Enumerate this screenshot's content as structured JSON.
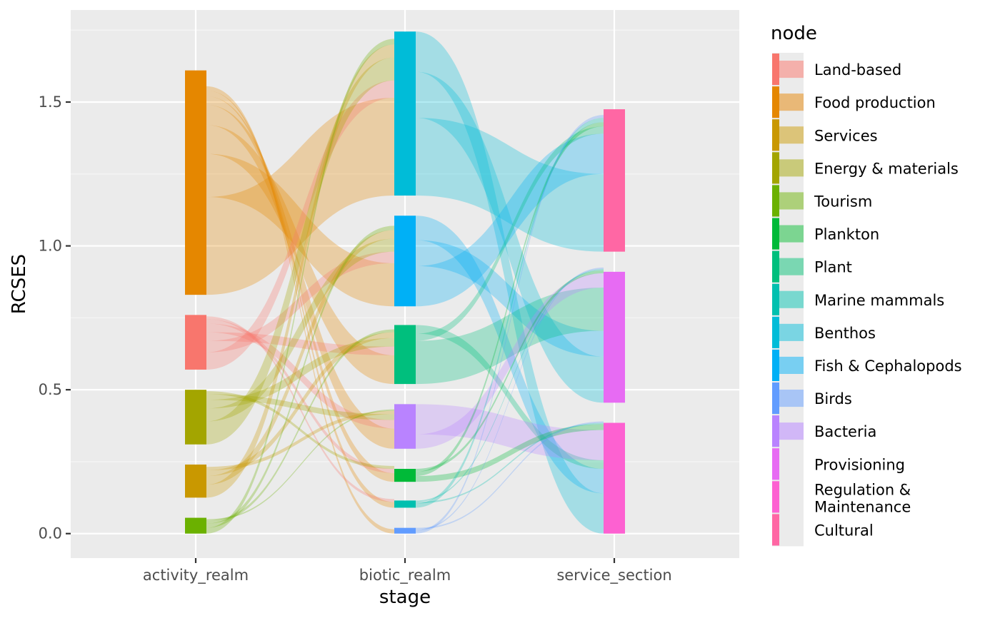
{
  "chart_data": {
    "type": "alluvial",
    "title": "",
    "xlabel": "stage",
    "ylabel": "RCSES",
    "ylim": [
      -0.085,
      1.82
    ],
    "yticks": [
      "0.0",
      "0.5",
      "1.0",
      "1.5"
    ],
    "grid": true,
    "legend_position": "right",
    "legend_title": "node",
    "stages": [
      "activity_realm",
      "biotic_realm",
      "service_section"
    ],
    "nodes": [
      {
        "stage": "activity_realm",
        "name": "Land-based",
        "ymin": 0.57,
        "ymax": 0.76,
        "color": "#F8766D"
      },
      {
        "stage": "activity_realm",
        "name": "Food production",
        "ymin": 0.83,
        "ymax": 1.61,
        "color": "#E58700"
      },
      {
        "stage": "activity_realm",
        "name": "Services",
        "ymin": 0.125,
        "ymax": 0.24,
        "color": "#C99800"
      },
      {
        "stage": "activity_realm",
        "name": "Energy & materials",
        "ymin": 0.31,
        "ymax": 0.5,
        "color": "#A3A500"
      },
      {
        "stage": "activity_realm",
        "name": "Tourism",
        "ymin": 0.0,
        "ymax": 0.055,
        "color": "#6BB100"
      },
      {
        "stage": "biotic_realm",
        "name": "Plankton",
        "ymin": 0.18,
        "ymax": 0.225,
        "color": "#00BA38"
      },
      {
        "stage": "biotic_realm",
        "name": "Plant",
        "ymin": 0.52,
        "ymax": 0.725,
        "color": "#00BF7D"
      },
      {
        "stage": "biotic_realm",
        "name": "Marine mammals",
        "ymin": 0.09,
        "ymax": 0.115,
        "color": "#00C0AF"
      },
      {
        "stage": "biotic_realm",
        "name": "Benthos",
        "ymin": 1.175,
        "ymax": 1.745,
        "color": "#00BCD8"
      },
      {
        "stage": "biotic_realm",
        "name": "Fish & Cephalopods",
        "ymin": 0.79,
        "ymax": 1.105,
        "color": "#00B0F6"
      },
      {
        "stage": "biotic_realm",
        "name": "Birds",
        "ymin": 0.0,
        "ymax": 0.02,
        "color": "#619CFF"
      },
      {
        "stage": "biotic_realm",
        "name": "Bacteria",
        "ymin": 0.295,
        "ymax": 0.45,
        "color": "#B983FF"
      },
      {
        "stage": "service_section",
        "name": "Provisioning",
        "ymin": 0.455,
        "ymax": 0.91,
        "color": "#E76BF3"
      },
      {
        "stage": "service_section",
        "name": "Regulation & Maintenance",
        "ymin": 0.0,
        "ymax": 0.385,
        "color": "#FD61D1"
      },
      {
        "stage": "service_section",
        "name": "Cultural",
        "ymin": 0.98,
        "ymax": 1.475,
        "color": "#FF67A4"
      }
    ],
    "flows": [
      {
        "from": "Food production",
        "to": "Benthos",
        "value": 0.34
      },
      {
        "from": "Food production",
        "to": "Fish & Cephalopods",
        "value": 0.15
      },
      {
        "from": "Food production",
        "to": "Plant",
        "value": 0.1
      },
      {
        "from": "Food production",
        "to": "Bacteria",
        "value": 0.07
      },
      {
        "from": "Food production",
        "to": "Plankton",
        "value": 0.03
      },
      {
        "from": "Food production",
        "to": "Marine mammals",
        "value": 0.02
      },
      {
        "from": "Food production",
        "to": "Birds",
        "value": 0.015
      },
      {
        "from": "Land-based",
        "to": "Benthos",
        "value": 0.06
      },
      {
        "from": "Land-based",
        "to": "Fish & Cephalopods",
        "value": 0.04
      },
      {
        "from": "Land-based",
        "to": "Plant",
        "value": 0.03
      },
      {
        "from": "Land-based",
        "to": "Bacteria",
        "value": 0.03
      },
      {
        "from": "Land-based",
        "to": "Plankton",
        "value": 0.015
      },
      {
        "from": "Land-based",
        "to": "Marine mammals",
        "value": 0.01
      },
      {
        "from": "Energy & materials",
        "to": "Benthos",
        "value": 0.08
      },
      {
        "from": "Energy & materials",
        "to": "Fish & Cephalopods",
        "value": 0.045
      },
      {
        "from": "Energy & materials",
        "to": "Plant",
        "value": 0.03
      },
      {
        "from": "Energy & materials",
        "to": "Bacteria",
        "value": 0.02
      },
      {
        "from": "Energy & materials",
        "to": "Plankton",
        "value": 0.01
      },
      {
        "from": "Services",
        "to": "Benthos",
        "value": 0.045
      },
      {
        "from": "Services",
        "to": "Fish & Cephalopods",
        "value": 0.03
      },
      {
        "from": "Services",
        "to": "Plant",
        "value": 0.02
      },
      {
        "from": "Services",
        "to": "Bacteria",
        "value": 0.012
      },
      {
        "from": "Tourism",
        "to": "Benthos",
        "value": 0.02
      },
      {
        "from": "Tourism",
        "to": "Fish & Cephalopods",
        "value": 0.015
      },
      {
        "from": "Tourism",
        "to": "Plant",
        "value": 0.01
      },
      {
        "from": "Tourism",
        "to": "Bacteria",
        "value": 0.005
      },
      {
        "from": "Benthos",
        "to": "Cultural",
        "value": 0.27
      },
      {
        "from": "Benthos",
        "to": "Provisioning",
        "value": 0.16
      },
      {
        "from": "Benthos",
        "to": "Regulation & Maintenance",
        "value": 0.14
      },
      {
        "from": "Fish & Cephalopods",
        "to": "Cultural",
        "value": 0.14
      },
      {
        "from": "Fish & Cephalopods",
        "to": "Provisioning",
        "value": 0.09
      },
      {
        "from": "Fish & Cephalopods",
        "to": "Regulation & Maintenance",
        "value": 0.085
      },
      {
        "from": "Plant",
        "to": "Provisioning",
        "value": 0.15
      },
      {
        "from": "Plant",
        "to": "Cultural",
        "value": 0.025
      },
      {
        "from": "Plant",
        "to": "Regulation & Maintenance",
        "value": 0.03
      },
      {
        "from": "Bacteria",
        "to": "Provisioning",
        "value": 0.05
      },
      {
        "from": "Bacteria",
        "to": "Regulation & Maintenance",
        "value": 0.105
      },
      {
        "from": "Plankton",
        "to": "Regulation & Maintenance",
        "value": 0.02
      },
      {
        "from": "Plankton",
        "to": "Cultural",
        "value": 0.015
      },
      {
        "from": "Plankton",
        "to": "Provisioning",
        "value": 0.01
      },
      {
        "from": "Marine mammals",
        "to": "Cultural",
        "value": 0.015
      },
      {
        "from": "Marine mammals",
        "to": "Regulation & Maintenance",
        "value": 0.005
      },
      {
        "from": "Marine mammals",
        "to": "Provisioning",
        "value": 0.005
      },
      {
        "from": "Birds",
        "to": "Cultural",
        "value": 0.01
      },
      {
        "from": "Birds",
        "to": "Provisioning",
        "value": 0.005
      },
      {
        "from": "Birds",
        "to": "Regulation & Maintenance",
        "value": 0.005
      }
    ],
    "legend": [
      {
        "label": "Land-based",
        "bar": "#F8766D",
        "fill": "#F4B0AB"
      },
      {
        "label": "Food production",
        "bar": "#E58700",
        "fill": "#E9B877"
      },
      {
        "label": "Services",
        "bar": "#C99800",
        "fill": "#DCC479"
      },
      {
        "label": "Energy & materials",
        "bar": "#A3A500",
        "fill": "#C9CA7A"
      },
      {
        "label": "Tourism",
        "bar": "#6BB100",
        "fill": "#ADD07A"
      },
      {
        "label": "Plankton",
        "bar": "#00BA38",
        "fill": "#7CD591"
      },
      {
        "label": "Plant",
        "bar": "#00BF7D",
        "fill": "#7AD7B2"
      },
      {
        "label": "Marine mammals",
        "bar": "#00C0AF",
        "fill": "#79D8CF"
      },
      {
        "label": "Benthos",
        "bar": "#00BCD8",
        "fill": "#7AD5E3"
      },
      {
        "label": "Fish & Cephalopods",
        "bar": "#00B0F6",
        "fill": "#78CFF2"
      },
      {
        "label": "Birds",
        "bar": "#619CFF",
        "fill": "#A8C5F6"
      },
      {
        "label": "Bacteria",
        "bar": "#B983FF",
        "fill": "#D1B7F7"
      },
      {
        "label": "Provisioning",
        "bar": "#E76BF3",
        "fill": "#EBEBEB"
      },
      {
        "label": "Regulation & Maintenance",
        "bar": "#FD61D1",
        "fill": "#EBEBEB"
      },
      {
        "label": "Cultural",
        "bar": "#FF67A4",
        "fill": "#EBEBEB"
      }
    ]
  }
}
